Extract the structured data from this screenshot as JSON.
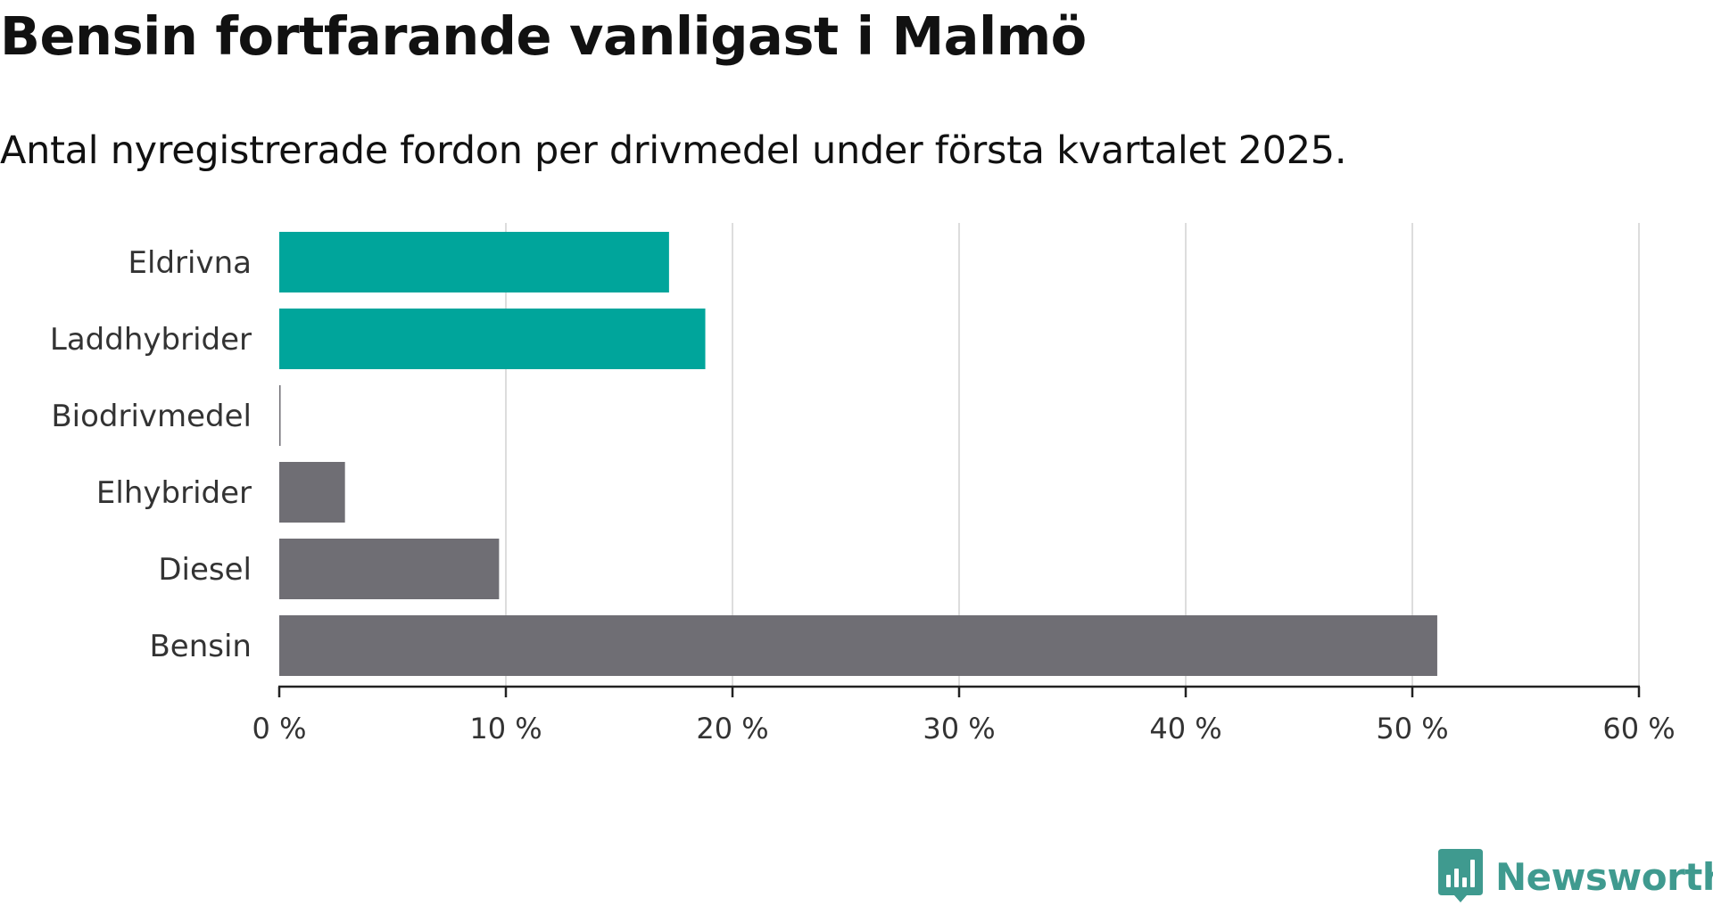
{
  "title": "Bensin fortfarande vanligast i Malmö",
  "subtitle": "Antal nyregistrerade fordon per drivmedel under första kvartalet 2025.",
  "brand": {
    "name": "Newsworthy",
    "logo_icon": "newsworthy-chart-bubble-icon",
    "color": "#3f9a8f"
  },
  "colors": {
    "highlight": "#00a59b",
    "default": "#6f6e74",
    "grid": "#dddddd",
    "axis": "#222222"
  },
  "chart_data": {
    "type": "bar",
    "orientation": "horizontal",
    "title": "Bensin fortfarande vanligast i Malmö",
    "subtitle": "Antal nyregistrerade fordon per drivmedel under första kvartalet 2025.",
    "categories": [
      "Eldrivna",
      "Laddhybrider",
      "Biodrivmedel",
      "Elhybrider",
      "Diesel",
      "Bensin"
    ],
    "values": [
      17.2,
      18.8,
      0.05,
      2.9,
      9.7,
      51.1
    ],
    "highlighted": [
      true,
      true,
      false,
      false,
      false,
      false
    ],
    "xlim": [
      0,
      60
    ],
    "xticks": [
      0,
      10,
      20,
      30,
      40,
      50,
      60
    ],
    "xtick_labels": [
      "0 %",
      "10 %",
      "20 %",
      "30 %",
      "40 %",
      "50 %",
      "60 %"
    ],
    "grid": true,
    "legend": "none"
  }
}
